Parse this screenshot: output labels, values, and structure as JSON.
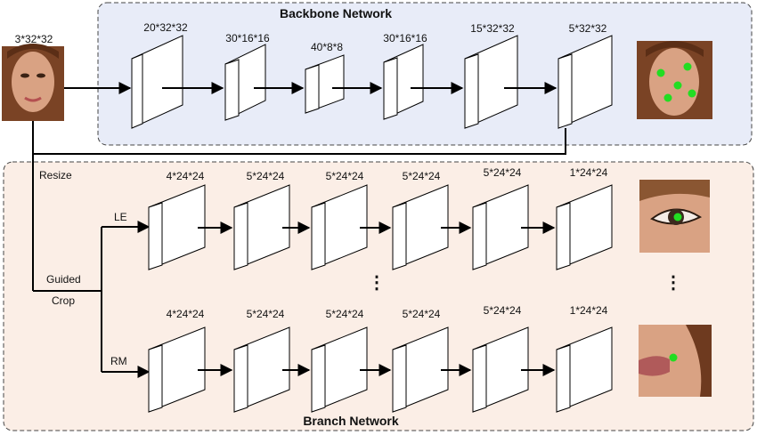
{
  "backbone": {
    "title": "Backbone Network",
    "input_label": "3*32*32",
    "layers": [
      "20*32*32",
      "30*16*16",
      "40*8*8",
      "30*16*16",
      "15*32*32",
      "5*32*32"
    ]
  },
  "branch": {
    "title": "Branch Network",
    "resize_label": "Resize",
    "guided_label": "Guided",
    "crop_label": "Crop",
    "le_label": "LE",
    "rm_label": "RM",
    "layers": [
      "4*24*24",
      "5*24*24",
      "5*24*24",
      "5*24*24",
      "5*24*24",
      "1*24*24"
    ],
    "ellipsis": "⋮"
  },
  "colors": {
    "backbone_fill": "#e8ecf8",
    "branch_fill": "#fbeee6",
    "landmark": "#22dd22",
    "face_skin": "#d9a283",
    "hair": "#6e3a1f"
  }
}
